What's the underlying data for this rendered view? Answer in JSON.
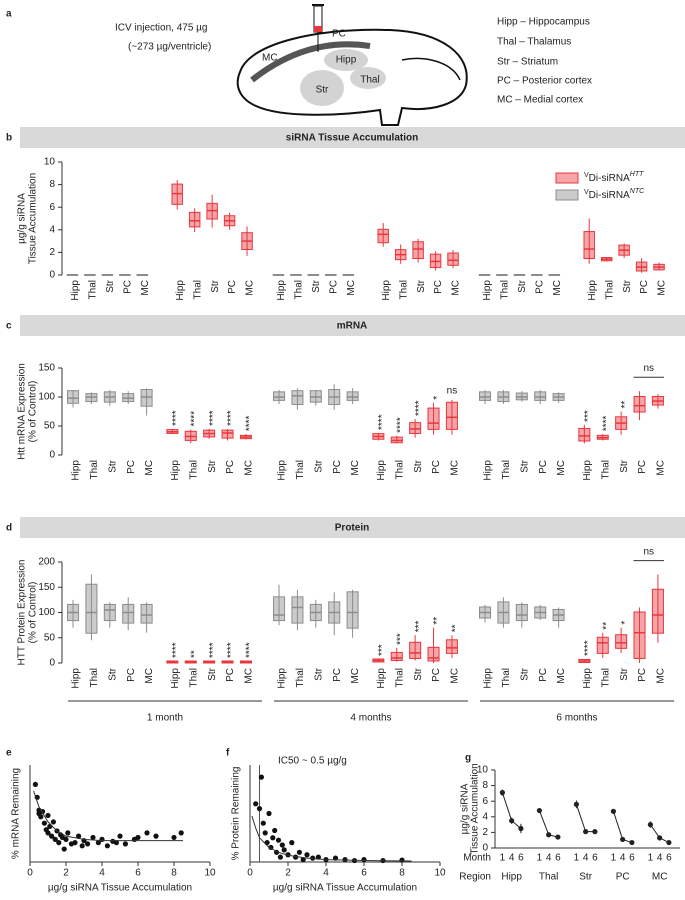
{
  "panel_a": {
    "label": "a",
    "injection": [
      "ICV injection, 475 µg",
      "(~273 µg/ventricle)"
    ],
    "brain_labels": [
      "PC",
      "MC",
      "Hipp",
      "Thal",
      "Str"
    ],
    "legend": [
      "Hipp – Hippocampus",
      "Thal – Thalamus",
      "Str – Striatum",
      "PC – Posterior cortex",
      "MC – Medial cortex"
    ]
  },
  "chart_data": [
    {
      "panel": "b",
      "type": "box",
      "title": "siRNA Tissue Accumulation",
      "ylabel": [
        "µg/g siRNA",
        "Tissue Accumulation"
      ],
      "ylim": [
        0,
        10
      ],
      "yticks": [
        0,
        2,
        4,
        6,
        8,
        10
      ],
      "regions": [
        "Hipp",
        "Thal",
        "Str",
        "PC",
        "MC"
      ],
      "legend": "top-right",
      "series": [
        {
          "name_prefix": "V",
          "name": "Di-siRNA",
          "name_suffix": "HTT",
          "color": "#e8373d",
          "boxes": [
            [
              5.8,
              6.3,
              7.2,
              8.0,
              8.4
            ],
            [
              3.8,
              4.3,
              4.8,
              5.5,
              5.9
            ],
            [
              4.2,
              5.0,
              5.7,
              6.3,
              7.1
            ],
            [
              4.0,
              4.4,
              4.8,
              5.2,
              5.5
            ],
            [
              1.7,
              2.3,
              3.0,
              3.7,
              4.3
            ],
            [
              2.5,
              2.9,
              3.6,
              4.0,
              4.6
            ],
            [
              1.0,
              1.4,
              1.8,
              2.2,
              2.7
            ],
            [
              1.1,
              1.5,
              2.3,
              2.9,
              3.2
            ],
            [
              0.4,
              0.7,
              1.2,
              1.8,
              2.1
            ],
            [
              0.6,
              0.9,
              1.3,
              1.9,
              2.2
            ],
            [
              1.0,
              1.5,
              2.3,
              3.8,
              5.0
            ],
            [
              1.2,
              1.3,
              1.4,
              1.5,
              1.6
            ],
            [
              1.5,
              1.8,
              2.2,
              2.6,
              2.8
            ],
            [
              0.2,
              0.4,
              0.7,
              1.1,
              1.5
            ],
            [
              0.4,
              0.5,
              0.7,
              0.9,
              1.1
            ]
          ]
        },
        {
          "name_prefix": "V",
          "name": "Di-siRNA",
          "name_suffix": "NTC",
          "color": "#8c8c8c",
          "boxes": [
            [
              0,
              0,
              0,
              0,
              0
            ],
            [
              0,
              0,
              0,
              0,
              0
            ],
            [
              0,
              0,
              0,
              0,
              0
            ],
            [
              0,
              0,
              0,
              0,
              0
            ],
            [
              0,
              0,
              0,
              0,
              0
            ],
            [
              0,
              0,
              0,
              0,
              0
            ],
            [
              0,
              0,
              0,
              0,
              0
            ],
            [
              0,
              0,
              0,
              0,
              0
            ],
            [
              0,
              0,
              0,
              0,
              0
            ],
            [
              0,
              0,
              0,
              0,
              0
            ],
            [
              0,
              0,
              0,
              0,
              0
            ],
            [
              0,
              0,
              0,
              0,
              0
            ],
            [
              0,
              0,
              0,
              0,
              0
            ],
            [
              0,
              0,
              0,
              0,
              0
            ],
            [
              0,
              0,
              0,
              0,
              0
            ]
          ]
        }
      ]
    },
    {
      "panel": "c",
      "type": "box",
      "title": "mRNA",
      "ylabel": [
        "Htt mRNA Expression",
        "(% of Control)"
      ],
      "ylim": [
        0,
        150
      ],
      "yticks": [
        0,
        50,
        100,
        150
      ],
      "regions": [
        "Hipp",
        "Thal",
        "Str",
        "PC",
        "MC"
      ],
      "bracket_label": "ns",
      "series": [
        {
          "color": "#e8373d",
          "boxes": [
            [
              36,
              38,
              40,
              43,
              45
            ],
            [
              20,
              26,
              32,
              40,
              44
            ],
            [
              28,
              32,
              37,
              42,
              45
            ],
            [
              25,
              30,
              38,
              42,
              45
            ],
            [
              27,
              29,
              31,
              33,
              36
            ],
            [
              25,
              28,
              32,
              36,
              38
            ],
            [
              20,
              22,
              25,
              30,
              33
            ],
            [
              30,
              38,
              45,
              55,
              62
            ],
            [
              35,
              45,
              55,
              80,
              90
            ],
            [
              35,
              45,
              65,
              90,
              95
            ],
            [
              20,
              25,
              33,
              45,
              52
            ],
            [
              25,
              28,
              30,
              33,
              36
            ],
            [
              35,
              45,
              55,
              65,
              75
            ],
            [
              60,
              75,
              85,
              100,
              110
            ],
            [
              80,
              87,
              93,
              100,
              105
            ]
          ],
          "stars": [
            "****",
            "****",
            "****",
            "****",
            "****",
            "****",
            "****",
            "****",
            "*",
            "ns",
            "***",
            "****",
            "**",
            null,
            null
          ]
        },
        {
          "color": "#8c8c8c",
          "boxes": [
            [
              82,
              90,
              98,
              110,
              112
            ],
            [
              88,
              93,
              100,
              105,
              108
            ],
            [
              85,
              92,
              100,
              108,
              112
            ],
            [
              88,
              93,
              98,
              105,
              110
            ],
            [
              68,
              85,
              100,
              112,
              115
            ],
            [
              88,
              95,
              100,
              108,
              112
            ],
            [
              78,
              88,
              102,
              110,
              115
            ],
            [
              85,
              92,
              100,
              110,
              112
            ],
            [
              78,
              88,
              100,
              112,
              122
            ],
            [
              88,
              95,
              100,
              108,
              115
            ],
            [
              88,
              95,
              100,
              108,
              112
            ],
            [
              88,
              93,
              100,
              108,
              112
            ],
            [
              92,
              96,
              100,
              106,
              110
            ],
            [
              88,
              95,
              100,
              108,
              112
            ],
            [
              90,
              95,
              100,
              105,
              108
            ]
          ]
        }
      ]
    },
    {
      "panel": "d",
      "type": "box",
      "title": "Protein",
      "ylabel": [
        "HTT Protein Expression",
        "(% of Control)"
      ],
      "ylim": [
        0,
        200
      ],
      "yticks": [
        0,
        50,
        100,
        150,
        200
      ],
      "regions": [
        "Hipp",
        "Thal",
        "Str",
        "PC",
        "MC"
      ],
      "bracket_label": "ns",
      "groups": [
        "1 month",
        "4 months",
        "6 months"
      ],
      "series": [
        {
          "color": "#e8373d",
          "boxes": [
            [
              0,
              1,
              2,
              3,
              4
            ],
            [
              0,
              1,
              2,
              3,
              4
            ],
            [
              0,
              1,
              2,
              3,
              4
            ],
            [
              0,
              1,
              2,
              3,
              4
            ],
            [
              0,
              1,
              2,
              3,
              4
            ],
            [
              2,
              3,
              5,
              7,
              8
            ],
            [
              3,
              6,
              10,
              20,
              30
            ],
            [
              5,
              10,
              20,
              40,
              55
            ],
            [
              0,
              5,
              10,
              30,
              70
            ],
            [
              10,
              20,
              30,
              45,
              55
            ],
            [
              0,
              2,
              4,
              6,
              8
            ],
            [
              10,
              20,
              40,
              50,
              60
            ],
            [
              20,
              30,
              40,
              55,
              70
            ],
            [
              0,
              10,
              60,
              100,
              110
            ],
            [
              40,
              60,
              95,
              145,
              175
            ]
          ],
          "stars": [
            "****",
            "**",
            "****",
            "****",
            "****",
            "***",
            "***",
            "***",
            "**",
            "**",
            "****",
            "**",
            "*",
            null,
            null
          ]
        },
        {
          "color": "#8c8c8c",
          "boxes": [
            [
              70,
              85,
              100,
              115,
              125
            ],
            [
              45,
              60,
              100,
              155,
              175
            ],
            [
              70,
              85,
              105,
              115,
              120
            ],
            [
              65,
              80,
              100,
              115,
              130
            ],
            [
              60,
              80,
              95,
              115,
              120
            ],
            [
              75,
              85,
              95,
              130,
              155
            ],
            [
              65,
              80,
              110,
              130,
              145
            ],
            [
              70,
              85,
              100,
              115,
              125
            ],
            [
              55,
              80,
              100,
              120,
              140
            ],
            [
              50,
              70,
              100,
              140,
              145
            ],
            [
              80,
              90,
              100,
              110,
              115
            ],
            [
              70,
              80,
              100,
              120,
              130
            ],
            [
              70,
              85,
              95,
              115,
              120
            ],
            [
              85,
              90,
              100,
              110,
              115
            ],
            [
              70,
              85,
              95,
              105,
              110
            ]
          ]
        }
      ]
    },
    {
      "panel": "e",
      "type": "scatter",
      "xlabel": "µg/g siRNA Tissue Accumulation",
      "ylabel": "% mRNA Remaining",
      "xlim": [
        0,
        10
      ],
      "xticks": [
        0,
        2,
        4,
        6,
        8,
        10
      ],
      "ylim": [
        0,
        150
      ],
      "color": "#111111",
      "x": [
        0.3,
        0.4,
        0.5,
        0.5,
        0.6,
        0.7,
        0.8,
        0.9,
        1.0,
        1.0,
        1.1,
        1.2,
        1.3,
        1.4,
        1.5,
        1.6,
        1.7,
        1.8,
        1.9,
        2.0,
        2.1,
        2.3,
        2.5,
        2.7,
        2.9,
        3.0,
        3.2,
        3.5,
        3.8,
        4.0,
        4.3,
        4.6,
        4.8,
        5.0,
        5.3,
        5.8,
        6.0,
        6.5,
        7.0,
        8.0,
        8.4
      ],
      "y": [
        120,
        100,
        80,
        75,
        70,
        78,
        60,
        50,
        72,
        45,
        55,
        40,
        62,
        35,
        48,
        30,
        42,
        38,
        20,
        35,
        45,
        28,
        30,
        40,
        25,
        33,
        28,
        38,
        30,
        35,
        25,
        32,
        30,
        40,
        28,
        35,
        38,
        45,
        40,
        38,
        45
      ],
      "fit": {
        "x": [
          0.2,
          0.5,
          1,
          1.5,
          2,
          3,
          4,
          6,
          8,
          8.5
        ],
        "y": [
          110,
          85,
          62,
          48,
          40,
          35,
          33,
          33,
          33,
          33
        ]
      }
    },
    {
      "panel": "f",
      "type": "scatter",
      "xlabel": "µg/g siRNA Tissue Accumulation",
      "ylabel": "% Protein Remaining",
      "annotation": "IC50 ~ 0.5 µg/g",
      "vline": 0.5,
      "xlim": [
        0,
        10
      ],
      "xticks": [
        0,
        2,
        4,
        6,
        8,
        10
      ],
      "ylim": [
        0,
        200
      ],
      "color": "#111111",
      "x": [
        0.3,
        0.5,
        0.6,
        0.7,
        0.8,
        0.9,
        1.0,
        1.1,
        1.2,
        1.3,
        1.4,
        1.5,
        1.6,
        1.7,
        1.8,
        2.0,
        2.2,
        2.4,
        2.6,
        2.8,
        3.0,
        3.3,
        3.6,
        4.0,
        4.5,
        5.0,
        5.5,
        6.0,
        7.0,
        8.0
      ],
      "y": [
        120,
        110,
        175,
        80,
        60,
        40,
        100,
        30,
        50,
        65,
        20,
        45,
        10,
        35,
        25,
        15,
        40,
        10,
        20,
        5,
        15,
        8,
        10,
        5,
        8,
        5,
        3,
        5,
        3,
        4
      ],
      "fit": {
        "x": [
          0.1,
          0.3,
          0.5,
          1,
          1.5,
          2,
          3,
          4,
          6,
          8.5
        ],
        "y": [
          95,
          70,
          50,
          30,
          20,
          14,
          8,
          5,
          3,
          2
        ]
      }
    },
    {
      "panel": "g",
      "type": "errorline",
      "ylabel": [
        "µg/g siRNA",
        "Tissue Accumulation"
      ],
      "ylim": [
        0,
        10
      ],
      "yticks": [
        0,
        2,
        4,
        6,
        8,
        10
      ],
      "row_labels": [
        "Month",
        "Region"
      ],
      "months": [
        1,
        4,
        6
      ],
      "color": "#222222",
      "series": [
        {
          "name": "Hipp",
          "values": [
            7.1,
            3.5,
            2.5
          ],
          "errors": [
            0.4,
            0.4,
            0.6
          ]
        },
        {
          "name": "Thal",
          "values": [
            4.8,
            1.7,
            1.4
          ],
          "errors": [
            0.3,
            0.2,
            0.1
          ]
        },
        {
          "name": "Str",
          "values": [
            5.6,
            2.1,
            2.1
          ],
          "errors": [
            0.5,
            0.3,
            0.2
          ]
        },
        {
          "name": "PC",
          "values": [
            4.7,
            1.1,
            0.7
          ],
          "errors": [
            0.3,
            0.3,
            0.2
          ]
        },
        {
          "name": "MC",
          "values": [
            3.0,
            1.3,
            0.7
          ],
          "errors": [
            0.4,
            0.3,
            0.1
          ]
        }
      ]
    }
  ]
}
